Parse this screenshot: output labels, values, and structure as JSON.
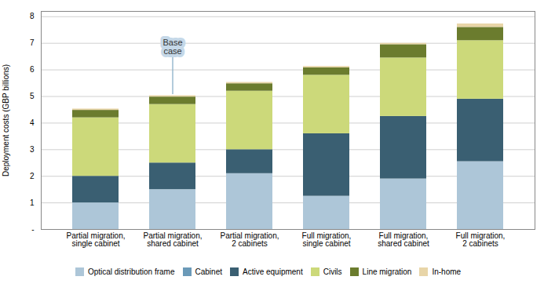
{
  "chart_data": {
    "type": "bar",
    "stacked": true,
    "categories": [
      "Partial migration,\nsingle cabinet",
      "Partial migration,\nshared cabinet",
      "Partial migration,\n2 cabinets",
      "Full migration,\nsingle cabinet",
      "Full migration,\nshared cabinet",
      "Full migration,\n2 cabinets"
    ],
    "series": [
      {
        "name": "Optical distribution frame",
        "color": "#adc6d8",
        "values": [
          1.0,
          1.5,
          2.1,
          1.25,
          1.9,
          2.55
        ]
      },
      {
        "name": "Cabinet",
        "color": "#6b9ab8",
        "values": [
          0.0,
          0.0,
          0.0,
          0.0,
          0.0,
          0.0
        ]
      },
      {
        "name": "Active equipment",
        "color": "#3a5f72",
        "values": [
          1.0,
          1.0,
          0.9,
          2.35,
          2.35,
          2.35
        ]
      },
      {
        "name": "Civils",
        "color": "#ccd97a",
        "values": [
          2.2,
          2.2,
          2.2,
          2.2,
          2.2,
          2.2
        ]
      },
      {
        "name": "Line migration",
        "color": "#6b7c2e",
        "values": [
          0.28,
          0.28,
          0.28,
          0.28,
          0.5,
          0.5
        ]
      },
      {
        "name": "In-home",
        "color": "#e8d5a8",
        "values": [
          0.05,
          0.05,
          0.05,
          0.05,
          0.05,
          0.13
        ]
      }
    ],
    "ylabel": "Deployment costs (GBP billions)",
    "ylim": [
      0,
      8.2
    ],
    "yticks": [
      {
        "value": 0,
        "label": "-"
      },
      1,
      2,
      3,
      4,
      5,
      6,
      7,
      8
    ],
    "grid": true,
    "legend": "bottom",
    "annotations": [
      {
        "text": "Base\ncase",
        "x": "Partial migration,\nshared cabinet",
        "y": 5.07,
        "text_y": 6.85
      }
    ]
  }
}
